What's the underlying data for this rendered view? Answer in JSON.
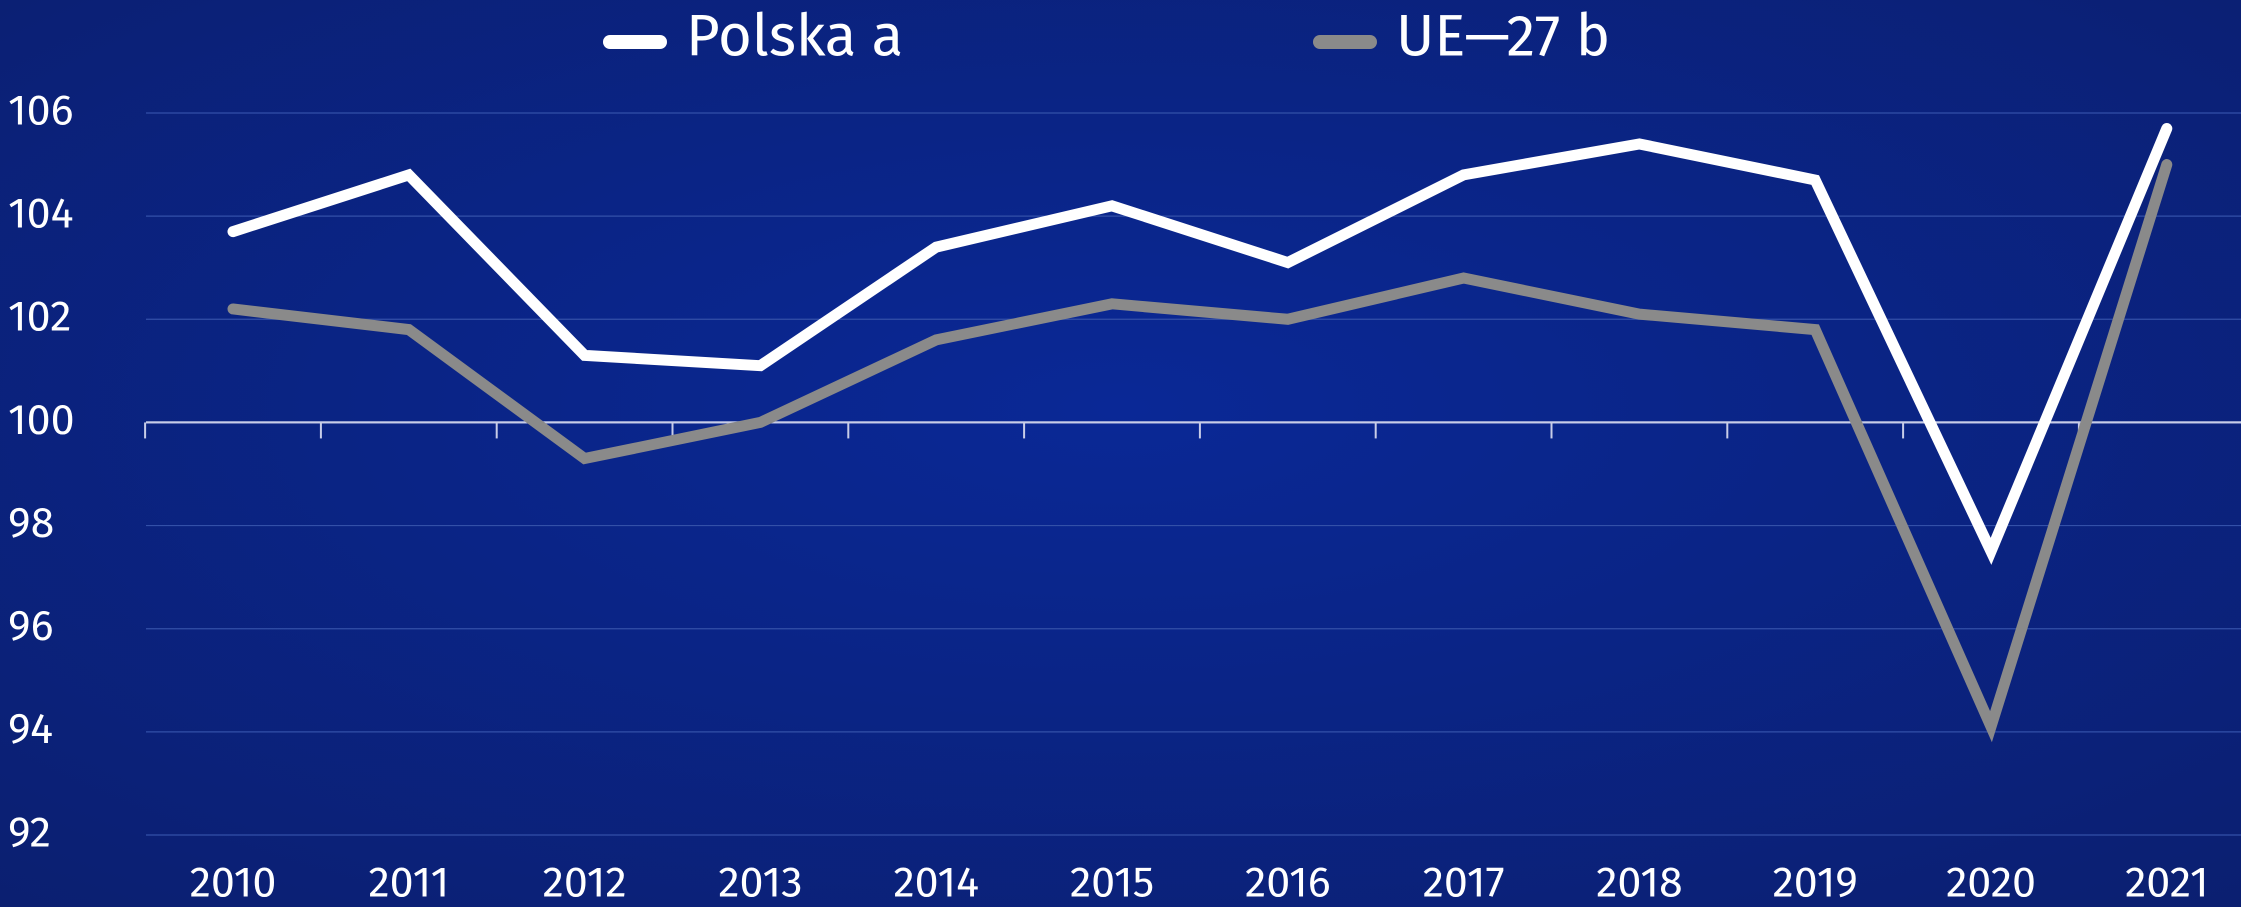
{
  "chart_data": {
    "type": "line",
    "categories": [
      "2010",
      "2011",
      "2012",
      "2013",
      "2014",
      "2015",
      "2016",
      "2017",
      "2018",
      "2019",
      "2020",
      "2021"
    ],
    "series": [
      {
        "name": "Polska a",
        "color": "#ffffff",
        "values": [
          103.7,
          104.8,
          101.3,
          101.1,
          103.4,
          104.2,
          103.1,
          104.8,
          105.4,
          104.7,
          97.5,
          105.7
        ]
      },
      {
        "name": "UE—27 b",
        "color": "#8a8a8a",
        "values": [
          102.2,
          101.8,
          99.3,
          100.0,
          101.6,
          102.3,
          102.0,
          102.8,
          102.1,
          101.8,
          94.1,
          105.0
        ]
      }
    ],
    "ylim": [
      92,
      106
    ],
    "yticks": [
      92,
      94,
      96,
      98,
      100,
      102,
      104,
      106
    ],
    "grid": true,
    "baseline": 100,
    "legend": "top"
  }
}
